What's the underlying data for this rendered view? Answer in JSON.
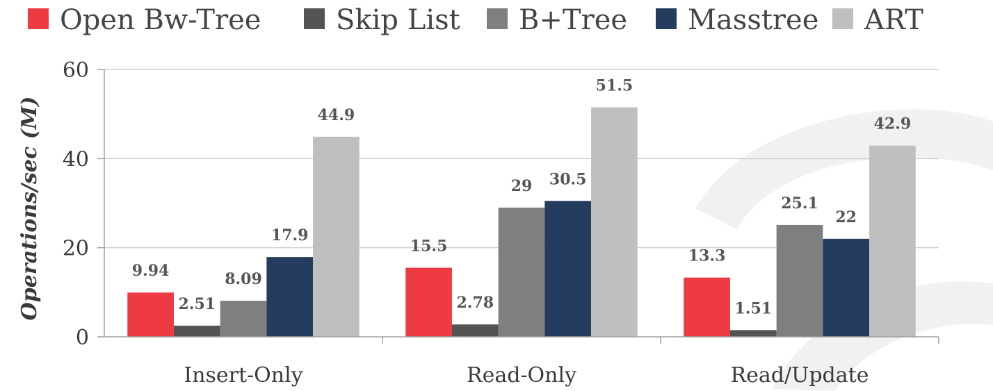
{
  "chart_data": {
    "type": "bar",
    "title": "",
    "xlabel": "",
    "ylabel": "Operations/sec (M)",
    "ylim": [
      0,
      60
    ],
    "yticks": [
      0,
      20,
      40,
      60
    ],
    "grid": true,
    "legend_position": "top",
    "categories": [
      "Insert-Only",
      "Read-Only",
      "Read/Update"
    ],
    "series": [
      {
        "name": "Open Bw-Tree",
        "color": "#ee3b43",
        "values": [
          9.94,
          15.5,
          13.3
        ],
        "labels": [
          "9.94",
          "15.5",
          "13.3"
        ]
      },
      {
        "name": "Skip List",
        "color": "#545454",
        "values": [
          2.51,
          2.78,
          1.51
        ],
        "labels": [
          "2.51",
          "2.78",
          "1.51"
        ]
      },
      {
        "name": "B+Tree",
        "color": "#7f7f7f",
        "values": [
          8.09,
          29,
          25.1
        ],
        "labels": [
          "8.09",
          "29",
          "25.1"
        ]
      },
      {
        "name": "Masstree",
        "color": "#243d5e",
        "values": [
          17.9,
          30.5,
          22
        ],
        "labels": [
          "17.9",
          "30.5",
          "22"
        ]
      },
      {
        "name": "ART",
        "color": "#bfbfbf",
        "values": [
          44.9,
          51.5,
          42.9
        ],
        "labels": [
          "44.9",
          "51.5",
          "42.9"
        ]
      }
    ]
  }
}
